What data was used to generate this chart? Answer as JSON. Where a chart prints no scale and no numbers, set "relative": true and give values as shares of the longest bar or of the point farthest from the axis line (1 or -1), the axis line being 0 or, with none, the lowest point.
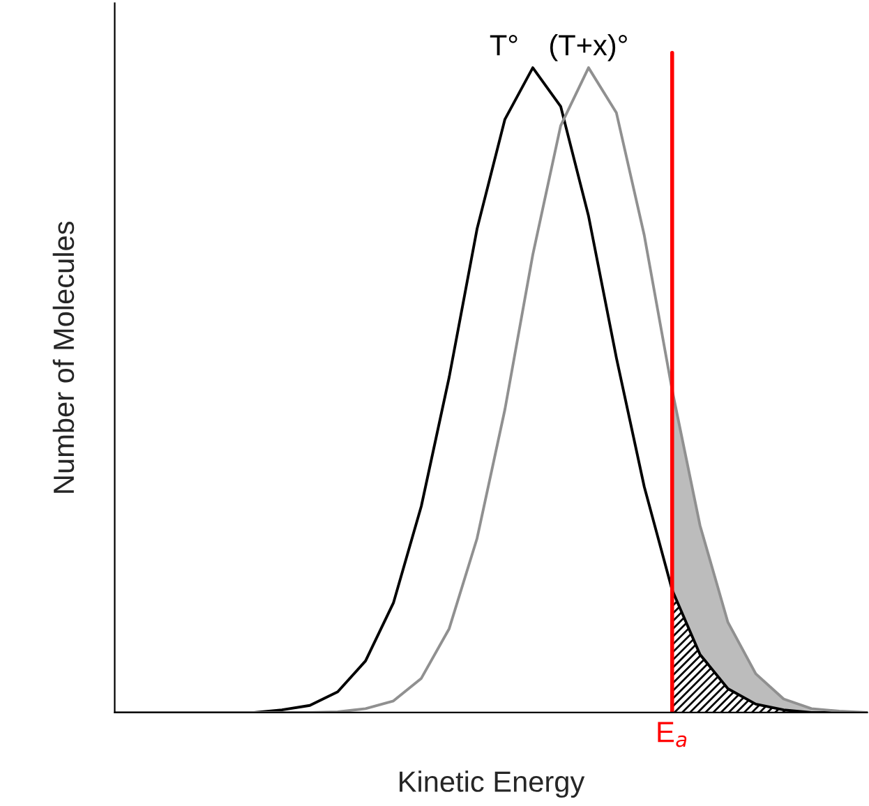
{
  "chart_data": {
    "type": "line",
    "relative": true,
    "xlabel": "Kinetic Energy",
    "ylabel": "Number of Molecules",
    "categories": [
      null,
      null,
      null,
      null,
      null,
      null,
      null,
      null,
      null,
      null,
      null,
      null,
      null,
      null,
      null,
      null,
      null,
      null,
      null,
      null,
      null,
      null,
      null,
      null,
      null,
      null,
      null,
      null
    ],
    "series": [
      {
        "name": "T°",
        "color": "#000000",
        "values": [
          0,
          0,
          0,
          0,
          0,
          0,
          0.004,
          0.011,
          0.032,
          0.08,
          0.17,
          0.32,
          0.52,
          0.75,
          0.92,
          1.0,
          0.94,
          0.77,
          0.55,
          0.35,
          0.19,
          0.09,
          0.037,
          0.013,
          0.004,
          0,
          0,
          0
        ],
        "lower": [
          null,
          null,
          null,
          null,
          null,
          null,
          null,
          null,
          null,
          null,
          null,
          null,
          null,
          null,
          null,
          null,
          null,
          null,
          null,
          null,
          0,
          0,
          0,
          0,
          0,
          0,
          0,
          0
        ],
        "upper": [
          null,
          null,
          null,
          null,
          null,
          null,
          null,
          null,
          null,
          null,
          null,
          null,
          null,
          null,
          null,
          null,
          null,
          null,
          null,
          null,
          0.19,
          0.09,
          0.037,
          0.013,
          0.004,
          0,
          0,
          0
        ]
      },
      {
        "name": "(T+x)°",
        "color": "#909090",
        "values": [
          0,
          0,
          0,
          0,
          0,
          0,
          0,
          0,
          0.001,
          0.006,
          0.018,
          0.053,
          0.13,
          0.27,
          0.47,
          0.71,
          0.91,
          1.0,
          0.93,
          0.74,
          0.5,
          0.29,
          0.14,
          0.06,
          0.021,
          0.006,
          0.002,
          0
        ],
        "lower": [
          null,
          null,
          null,
          null,
          null,
          null,
          null,
          null,
          null,
          null,
          null,
          null,
          null,
          null,
          null,
          null,
          null,
          null,
          null,
          null,
          0.19,
          0.09,
          0.037,
          0.013,
          0.004,
          0,
          0,
          0
        ],
        "upper": [
          null,
          null,
          null,
          null,
          null,
          null,
          null,
          null,
          null,
          null,
          null,
          null,
          null,
          null,
          null,
          null,
          null,
          null,
          null,
          null,
          0.5,
          0.29,
          0.14,
          0.06,
          0.021,
          0.006,
          0.002,
          0
        ]
      }
    ],
    "annotations": [
      "E$_{a}$"
    ]
  }
}
